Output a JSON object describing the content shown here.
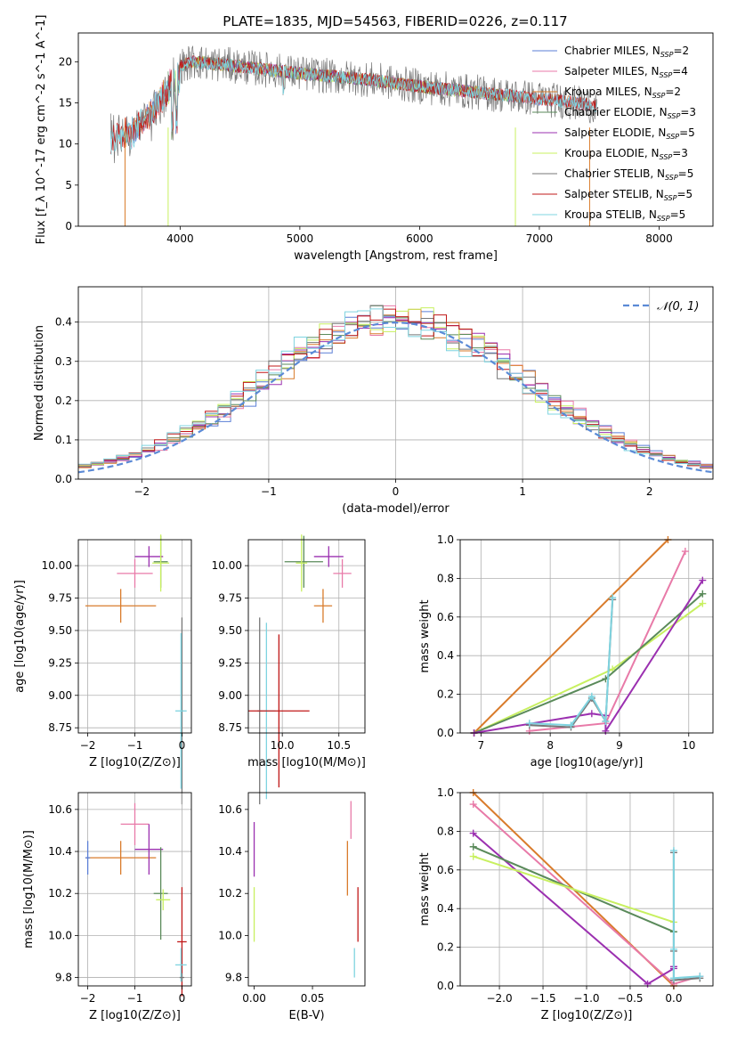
{
  "figure": {
    "title": "PLATE=1835, MJD=54563, FIBERID=0226, z=0.117"
  },
  "colors": {
    "chabrier_miles": "#5b7fd6",
    "salpeter_miles": "#e87aa8",
    "kroupa_miles": "#d97b2b",
    "chabrier_elodie": "#5a8a5a",
    "salpeter_elodie": "#9b30b0",
    "kroupa_elodie": "#c8f060",
    "chabrier_stelib": "#777777",
    "salpeter_stelib": "#c01818",
    "kroupa_stelib": "#7fd4e0",
    "normal_curve": "#5b8ad6"
  },
  "chart_data": [
    {
      "id": "spectrum",
      "type": "line",
      "xlabel": "wavelength [Angstrom, rest frame]",
      "ylabel": "Flux [f_λ 10^-17 erg cm^-2 s^-1 A^-1]",
      "xlim": [
        3150,
        8450
      ],
      "ylim": [
        0,
        23.5
      ],
      "xticks": [
        4000,
        5000,
        6000,
        7000,
        8000
      ],
      "yticks": [
        0,
        5,
        10,
        15,
        20
      ],
      "legend_position": "top-right",
      "data_range": [
        3420,
        7480
      ],
      "continuum": {
        "x": [
          3420,
          3600,
          3800,
          3950,
          4100,
          4400,
          4800,
          5200,
          5600,
          6000,
          6400,
          6800,
          7200,
          7480
        ],
        "y": [
          12.0,
          12.8,
          16.0,
          19.2,
          20.0,
          19.6,
          18.9,
          18.3,
          17.8,
          17.0,
          16.4,
          15.8,
          15.2,
          14.6
        ]
      },
      "series": [
        {
          "name": "Chabrier MILES, N_SSP=2",
          "label_base": "Chabrier MILES, N",
          "label_sub": "SSP",
          "label_tail": "=2",
          "color": "chabrier_miles",
          "x_range": [
            3540,
            7420
          ]
        },
        {
          "name": "Salpeter MILES, N_SSP=4",
          "label_base": "Salpeter MILES, N",
          "label_sub": "SSP",
          "label_tail": "=4",
          "color": "salpeter_miles",
          "x_range": [
            3540,
            7420
          ]
        },
        {
          "name": "Kroupa MILES, N_SSP=2",
          "label_base": "Kroupa MILES, N",
          "label_sub": "SSP",
          "label_tail": "=2",
          "color": "kroupa_miles",
          "x_range": [
            3520,
            7420
          ]
        },
        {
          "name": "Chabrier ELODIE, N_SSP=3",
          "label_base": "Chabrier ELODIE, N",
          "label_sub": "SSP",
          "label_tail": "=3",
          "color": "chabrier_elodie",
          "x_range": [
            3900,
            6800
          ]
        },
        {
          "name": "Salpeter ELODIE, N_SSP=5",
          "label_base": "Salpeter ELODIE, N",
          "label_sub": "SSP",
          "label_tail": "=5",
          "color": "salpeter_elodie",
          "x_range": [
            3900,
            6800
          ]
        },
        {
          "name": "Kroupa ELODIE, N_SSP=3",
          "label_base": "Kroupa ELODIE, N",
          "label_sub": "SSP",
          "label_tail": "=3",
          "color": "kroupa_elodie",
          "x_range": [
            3900,
            6800
          ]
        },
        {
          "name": "Chabrier STELIB, N_SSP=5",
          "label_base": "Chabrier STELIB, N",
          "label_sub": "SSP",
          "label_tail": "=5",
          "color": "chabrier_stelib",
          "x_range": [
            3420,
            7480
          ]
        },
        {
          "name": "Salpeter STELIB, N_SSP=5",
          "label_base": "Salpeter STELIB, N",
          "label_sub": "SSP",
          "label_tail": "=5",
          "color": "salpeter_stelib",
          "x_range": [
            3420,
            7480
          ]
        },
        {
          "name": "Kroupa STELIB, N_SSP=5",
          "label_base": "Kroupa STELIB, N",
          "label_sub": "SSP",
          "label_tail": "=5",
          "color": "kroupa_stelib",
          "x_range": [
            3420,
            7480
          ]
        }
      ]
    },
    {
      "id": "residuals",
      "type": "line",
      "xlabel": "(data-model)/error",
      "ylabel": "Normed distribution",
      "xlim": [
        -2.5,
        2.5
      ],
      "ylim": [
        0,
        0.49
      ],
      "xticks": [
        -2,
        -1,
        0,
        1,
        2
      ],
      "yticks": [
        0.0,
        0.1,
        0.2,
        0.3,
        0.4
      ],
      "grid": true,
      "legend_position": "top-right",
      "legend": "𝒩(0, 1)",
      "step_colors": [
        "chabrier_miles",
        "salpeter_miles",
        "kroupa_miles",
        "chabrier_elodie",
        "salpeter_elodie",
        "kroupa_elodie",
        "chabrier_stelib",
        "salpeter_stelib",
        "kroupa_stelib"
      ]
    },
    {
      "id": "age_vs_Z",
      "type": "scatter",
      "xlabel": "Z [log10(Z/Z⊙)]",
      "ylabel": "age  [log10(age/yr)]",
      "xlim": [
        -2.2,
        0.2
      ],
      "ylim": [
        8.71,
        10.2
      ],
      "xticks": [
        -2,
        -1,
        0
      ],
      "yticks": [
        8.75,
        9.0,
        9.25,
        9.5,
        9.75,
        10.0
      ],
      "grid": true,
      "points": [
        {
          "color": "kroupa_miles",
          "x": -1.3,
          "y": 9.69,
          "xerr": 0.75,
          "yerr": 0.13
        },
        {
          "color": "salpeter_miles",
          "x": -1.0,
          "y": 9.94,
          "xerr": 0.38,
          "yerr": 0.11
        },
        {
          "color": "salpeter_elodie",
          "x": -0.7,
          "y": 10.07,
          "xerr": 0.3,
          "yerr": 0.08
        },
        {
          "color": "chabrier_elodie",
          "x": -0.45,
          "y": 10.03,
          "xerr": 0.15,
          "yerr": 0.2
        },
        {
          "color": "kroupa_elodie",
          "x": -0.45,
          "y": 10.02,
          "xerr": 0.18,
          "yerr": 0.22
        },
        {
          "color": "chabrier_stelib",
          "x": 0.0,
          "y": 8.88,
          "xerr": 0.03,
          "yerr": 0.72
        },
        {
          "color": "kroupa_stelib",
          "x": -0.02,
          "y": 8.88,
          "xerr": 0.12,
          "yerr": 0.6
        }
      ]
    },
    {
      "id": "age_vs_mass",
      "type": "scatter",
      "xlabel": "mass [log10(M/M⊙)]",
      "ylabel": "",
      "xlim": [
        9.7,
        10.73
      ],
      "ylim": [
        8.71,
        10.2
      ],
      "xticks": [
        10.0,
        10.5
      ],
      "yticks": [
        8.75,
        9.0,
        9.25,
        9.5,
        9.75,
        10.0
      ],
      "grid": true,
      "points": [
        {
          "color": "chabrier_stelib",
          "x": 9.8,
          "y": 8.88,
          "xerr": 0.02,
          "yerr": 0.72
        },
        {
          "color": "kroupa_stelib",
          "x": 9.86,
          "y": 8.88,
          "xerr": 0.08,
          "yerr": 0.68
        },
        {
          "color": "salpeter_stelib",
          "x": 9.97,
          "y": 8.88,
          "xerr": 0.27,
          "yerr": 0.59
        },
        {
          "color": "chabrier_elodie",
          "x": 10.19,
          "y": 10.03,
          "xerr": 0.17,
          "yerr": 0.2
        },
        {
          "color": "kroupa_elodie",
          "x": 10.17,
          "y": 10.02,
          "xerr": 0.05,
          "yerr": 0.22
        },
        {
          "color": "kroupa_miles",
          "x": 10.36,
          "y": 9.69,
          "xerr": 0.08,
          "yerr": 0.13
        },
        {
          "color": "salpeter_elodie",
          "x": 10.41,
          "y": 10.07,
          "xerr": 0.13,
          "yerr": 0.08
        },
        {
          "color": "salpeter_miles",
          "x": 10.53,
          "y": 9.94,
          "xerr": 0.08,
          "yerr": 0.11
        }
      ]
    },
    {
      "id": "mass_weight_vs_age",
      "type": "line",
      "xlabel": "age  [log10(age/yr)]",
      "ylabel": "mass weight",
      "xlim": [
        6.7,
        10.35
      ],
      "ylim": [
        0,
        1.0
      ],
      "xticks": [
        7,
        8,
        9,
        10
      ],
      "yticks": [
        0.0,
        0.2,
        0.4,
        0.6,
        0.8,
        1.0
      ],
      "grid": true,
      "series": [
        {
          "color": "kroupa_miles",
          "x": [
            6.9,
            9.7
          ],
          "y": [
            0.0,
            1.0
          ]
        },
        {
          "color": "salpeter_miles",
          "x": [
            7.7,
            8.8,
            9.95
          ],
          "y": [
            0.01,
            0.05,
            0.94
          ]
        },
        {
          "color": "kroupa_elodie",
          "x": [
            6.9,
            8.9,
            10.2
          ],
          "y": [
            0.0,
            0.33,
            0.67
          ]
        },
        {
          "color": "chabrier_elodie",
          "x": [
            6.9,
            8.8,
            10.2
          ],
          "y": [
            0.0,
            0.28,
            0.72
          ]
        },
        {
          "color": "salpeter_elodie",
          "x": [
            6.9,
            8.6,
            8.8,
            8.8,
            10.2
          ],
          "y": [
            0.0,
            0.1,
            0.09,
            0.01,
            0.79
          ]
        },
        {
          "color": "chabrier_stelib",
          "x": [
            7.7,
            8.3,
            8.6,
            8.8,
            8.9
          ],
          "y": [
            0.04,
            0.03,
            0.18,
            0.06,
            0.69
          ]
        },
        {
          "color": "kroupa_stelib",
          "x": [
            7.7,
            8.3,
            8.6,
            8.8,
            8.9
          ],
          "y": [
            0.05,
            0.04,
            0.19,
            0.06,
            0.7
          ]
        }
      ]
    },
    {
      "id": "mass_vs_Z",
      "type": "scatter",
      "xlabel": "Z [log10(Z/Z⊙)]",
      "ylabel": "mass [log10(M/M⊙)]",
      "xlim": [
        -2.2,
        0.2
      ],
      "ylim": [
        9.76,
        10.68
      ],
      "xticks": [
        -2,
        -1,
        0
      ],
      "yticks": [
        9.8,
        10.0,
        10.2,
        10.4,
        10.6
      ],
      "grid": true,
      "points": [
        {
          "color": "kroupa_miles",
          "x": -1.3,
          "y": 10.37,
          "xerr": 0.75,
          "yerr": 0.08
        },
        {
          "color": "chabrier_miles",
          "x": -2.0,
          "y": 10.37,
          "xerr": 0.05,
          "yerr": 0.08
        },
        {
          "color": "salpeter_miles",
          "x": -1.0,
          "y": 10.53,
          "xerr": 0.3,
          "yerr": 0.1
        },
        {
          "color": "salpeter_elodie",
          "x": -0.7,
          "y": 10.41,
          "xerr": 0.3,
          "yerr": 0.12
        },
        {
          "color": "chabrier_elodie",
          "x": -0.45,
          "y": 10.2,
          "xerr": 0.15,
          "yerr": 0.22
        },
        {
          "color": "kroupa_elodie",
          "x": -0.4,
          "y": 10.17,
          "xerr": 0.15,
          "yerr": 0.05
        },
        {
          "color": "salpeter_stelib",
          "x": 0.0,
          "y": 9.97,
          "xerr": 0.1,
          "yerr": 0.26
        },
        {
          "color": "kroupa_stelib",
          "x": -0.02,
          "y": 9.86,
          "xerr": 0.12,
          "yerr": 0.08
        },
        {
          "color": "chabrier_stelib",
          "x": 0.0,
          "y": 9.8,
          "xerr": 0.05,
          "yerr": 0.02
        }
      ]
    },
    {
      "id": "mass_vs_ebv",
      "type": "scatter",
      "xlabel": "E(B-V)",
      "ylabel": "",
      "xlim": [
        -0.005,
        0.095
      ],
      "ylim": [
        9.76,
        10.68
      ],
      "xticks": [
        0.0,
        0.05
      ],
      "yticks": [
        9.8,
        10.0,
        10.2,
        10.4,
        10.6
      ],
      "grid": false,
      "points": [
        {
          "color": "salpeter_elodie",
          "x": 0.0,
          "y": 10.41,
          "xerr": 0.0,
          "yerr": 0.13
        },
        {
          "color": "kroupa_elodie",
          "x": 0.0,
          "y": 10.1,
          "xerr": 0.0,
          "yerr": 0.13
        },
        {
          "color": "salpeter_miles",
          "x": 0.083,
          "y": 10.55,
          "xerr": 0.0,
          "yerr": 0.09
        },
        {
          "color": "kroupa_miles",
          "x": 0.08,
          "y": 10.32,
          "xerr": 0.0,
          "yerr": 0.13
        },
        {
          "color": "salpeter_stelib",
          "x": 0.089,
          "y": 10.1,
          "xerr": 0.0,
          "yerr": 0.13
        },
        {
          "color": "kroupa_stelib",
          "x": 0.086,
          "y": 9.87,
          "xerr": 0.0,
          "yerr": 0.07
        }
      ]
    },
    {
      "id": "mass_weight_vs_Z",
      "type": "line",
      "xlabel": "Z [log10(Z/Z⊙)]",
      "ylabel": "mass weight",
      "xlim": [
        -2.45,
        0.45
      ],
      "ylim": [
        0,
        1.0
      ],
      "xticks": [
        -2.0,
        -1.5,
        -1.0,
        -0.5,
        0.0
      ],
      "yticks": [
        0.0,
        0.2,
        0.4,
        0.6,
        0.8,
        1.0
      ],
      "grid": true,
      "series": [
        {
          "color": "kroupa_miles",
          "x": [
            -2.3,
            0.0
          ],
          "y": [
            1.0,
            0.0
          ]
        },
        {
          "color": "salpeter_miles",
          "x": [
            -2.3,
            0.0,
            0.3
          ],
          "y": [
            0.94,
            0.01,
            0.05
          ]
        },
        {
          "color": "salpeter_elodie",
          "x": [
            -2.3,
            -0.3,
            0.0,
            0.0
          ],
          "y": [
            0.79,
            0.01,
            0.09,
            0.1
          ]
        },
        {
          "color": "chabrier_elodie",
          "x": [
            -2.3,
            0.0
          ],
          "y": [
            0.72,
            0.28
          ]
        },
        {
          "color": "kroupa_elodie",
          "x": [
            -2.3,
            0.0
          ],
          "y": [
            0.67,
            0.33
          ]
        },
        {
          "color": "chabrier_stelib",
          "x": [
            0.0,
            0.0,
            0.0,
            0.3
          ],
          "y": [
            0.69,
            0.18,
            0.03,
            0.04
          ]
        },
        {
          "color": "kroupa_stelib",
          "x": [
            0.0,
            0.0,
            0.0,
            0.3
          ],
          "y": [
            0.7,
            0.19,
            0.04,
            0.05
          ]
        }
      ]
    }
  ]
}
